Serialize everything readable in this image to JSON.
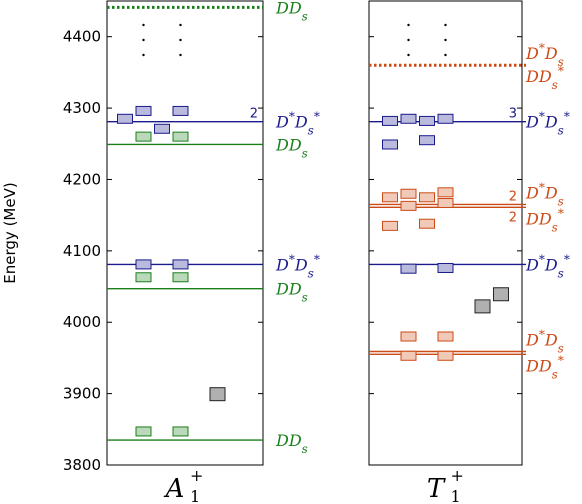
{
  "chart_data": {
    "type": "spectrum",
    "ylabel": "Energy (MeV)",
    "ylim": [
      3800,
      4450
    ],
    "yticks": [
      3800,
      3900,
      4000,
      4100,
      4200,
      4300,
      4400
    ],
    "colors": {
      "DDs": "#1a7f1a",
      "DstarDsstar": "#1a1a8c",
      "mixed": "#cc4a14",
      "other": "#555555"
    },
    "panels": [
      {
        "irrep": {
          "base": "A",
          "sup": "+",
          "sub": "1"
        },
        "thresholds": [
          {
            "energy": 4441,
            "label": "DD_s",
            "color": "DDs",
            "style": "dotted"
          },
          {
            "energy": 4281,
            "label": "D*D_s*",
            "color": "DstarDsstar",
            "style": "solid",
            "multiplicity": "2"
          },
          {
            "energy": 4249,
            "label": "DD_s",
            "color": "DDs",
            "style": "solid"
          },
          {
            "energy": 4081,
            "label": "D*D_s*",
            "color": "DstarDsstar",
            "style": "solid"
          },
          {
            "energy": 4047,
            "label": "DD_s",
            "color": "DDs",
            "style": "solid"
          },
          {
            "energy": 3835,
            "label": "DD_s",
            "color": "DDs",
            "style": "solid"
          }
        ],
        "levels": [
          {
            "col": 0,
            "energy": 4285,
            "color": "DstarDsstar"
          },
          {
            "col": 1,
            "energy": 4296,
            "color": "DstarDsstar"
          },
          {
            "col": 2,
            "energy": 4271,
            "color": "DstarDsstar"
          },
          {
            "col": 3,
            "energy": 4296,
            "color": "DstarDsstar"
          },
          {
            "col": 1,
            "energy": 4260,
            "color": "DDs"
          },
          {
            "col": 3,
            "energy": 4260,
            "color": "DDs"
          },
          {
            "col": 1,
            "energy": 4081,
            "color": "DstarDsstar"
          },
          {
            "col": 3,
            "energy": 4081,
            "color": "DstarDsstar"
          },
          {
            "col": 1,
            "energy": 4063,
            "color": "DDs"
          },
          {
            "col": 3,
            "energy": 4063,
            "color": "DDs"
          },
          {
            "col": 5,
            "energy": 3902,
            "color": "other"
          },
          {
            "col": 1,
            "energy": 3847,
            "color": "DDs"
          },
          {
            "col": 3,
            "energy": 3847,
            "color": "DDs"
          }
        ],
        "ellipsis_cols": [
          1,
          3
        ]
      },
      {
        "irrep": {
          "base": "T",
          "sup": "+",
          "sub": "1"
        },
        "thresholds": [
          {
            "energy": 4360,
            "label": "D*D_s",
            "color": "mixed",
            "style": "dotted",
            "stacked_label": "DD_s*"
          },
          {
            "energy": 4281,
            "label": "D*D_s*",
            "color": "DstarDsstar",
            "style": "solid",
            "multiplicity": "3"
          },
          {
            "energy": 4165,
            "label": "D*D_s",
            "color": "mixed",
            "style": "solid",
            "multiplicity": "2"
          },
          {
            "energy": 4161,
            "label": "DD_s*",
            "color": "mixed",
            "style": "solid",
            "multiplicity": "2"
          },
          {
            "energy": 4081,
            "label": "D*D_s*",
            "color": "DstarDsstar",
            "style": "solid"
          },
          {
            "energy": 3959,
            "label": "D*D_s",
            "color": "mixed",
            "style": "solid"
          },
          {
            "energy": 3955,
            "label": "DD_s*",
            "color": "mixed",
            "style": "solid"
          }
        ],
        "levels": [
          {
            "col": 0,
            "energy": 4282,
            "color": "DstarDsstar"
          },
          {
            "col": 1,
            "energy": 4285,
            "color": "DstarDsstar"
          },
          {
            "col": 2,
            "energy": 4282,
            "color": "DstarDsstar"
          },
          {
            "col": 3,
            "energy": 4285,
            "color": "DstarDsstar"
          },
          {
            "col": 0,
            "energy": 4249,
            "color": "DstarDsstar"
          },
          {
            "col": 2,
            "energy": 4255,
            "color": "DstarDsstar"
          },
          {
            "col": 0,
            "energy": 4175,
            "color": "mixed"
          },
          {
            "col": 1,
            "energy": 4180,
            "color": "mixed"
          },
          {
            "col": 2,
            "energy": 4175,
            "color": "mixed"
          },
          {
            "col": 3,
            "energy": 4182,
            "color": "mixed"
          },
          {
            "col": 1,
            "energy": 4163,
            "color": "mixed"
          },
          {
            "col": 3,
            "energy": 4167,
            "color": "mixed"
          },
          {
            "col": 0,
            "energy": 4135,
            "color": "mixed"
          },
          {
            "col": 2,
            "energy": 4138,
            "color": "mixed"
          },
          {
            "col": 1,
            "energy": 4075,
            "color": "DstarDsstar"
          },
          {
            "col": 3,
            "energy": 4076,
            "color": "DstarDsstar"
          },
          {
            "col": 6,
            "energy": 4042,
            "color": "other"
          },
          {
            "col": 5,
            "energy": 4025,
            "color": "other"
          },
          {
            "col": 1,
            "energy": 3980,
            "color": "mixed"
          },
          {
            "col": 3,
            "energy": 3980,
            "color": "mixed"
          },
          {
            "col": 1,
            "energy": 3953,
            "color": "mixed"
          },
          {
            "col": 3,
            "energy": 3953,
            "color": "mixed"
          }
        ],
        "ellipsis_cols": [
          1,
          3
        ]
      }
    ]
  }
}
